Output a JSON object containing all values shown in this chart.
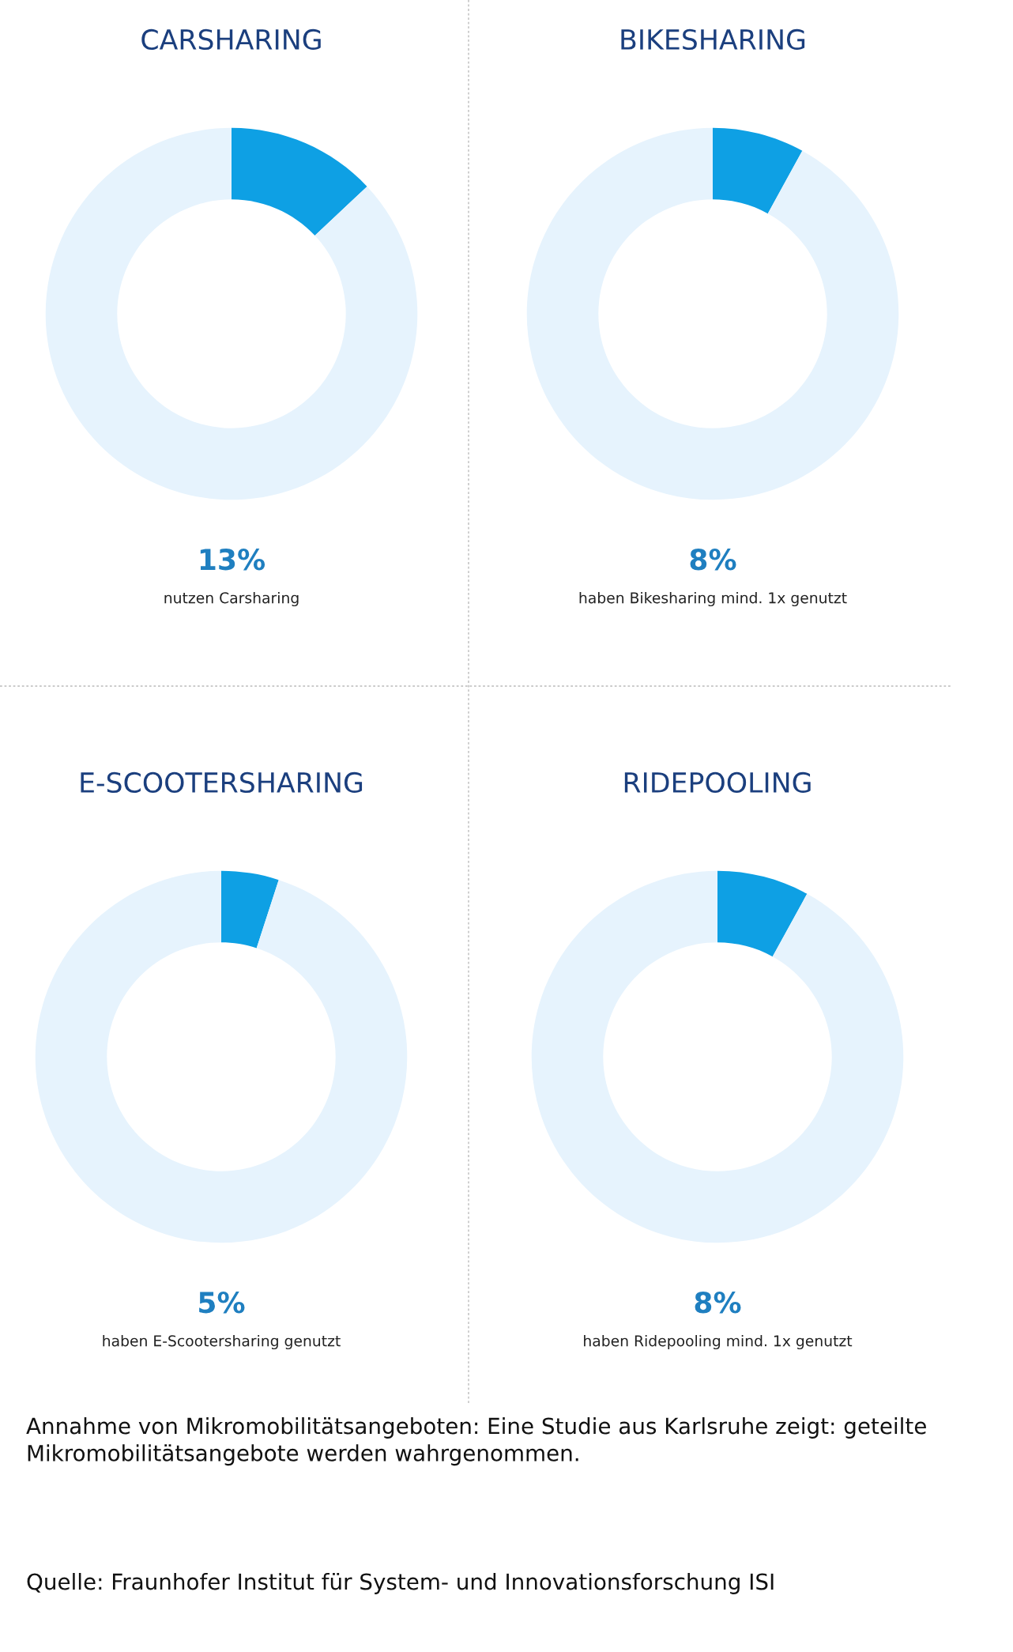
{
  "chart_data": [
    {
      "type": "donut",
      "title": "CARSHARING",
      "categories": [
        null,
        null
      ],
      "values": [
        13,
        87
      ],
      "colors": [
        "#0ea0e4",
        "#e6f3fd"
      ],
      "annotations": [
        "13%",
        "nutzen Carsharing"
      ]
    },
    {
      "type": "donut",
      "title": "BIKESHARING",
      "categories": [
        null,
        null
      ],
      "values": [
        8,
        92
      ],
      "colors": [
        "#0ea0e4",
        "#e6f3fd"
      ],
      "annotations": [
        "8%",
        "haben Bikesharing mind. 1x genutzt"
      ]
    },
    {
      "type": "donut",
      "title": "E-SCOOTERSHARING",
      "categories": [
        null,
        null
      ],
      "values": [
        5,
        95
      ],
      "colors": [
        "#0ea0e4",
        "#e6f3fd"
      ],
      "annotations": [
        "5%",
        "haben E-Scootersharing genutzt"
      ]
    },
    {
      "type": "donut",
      "title": "RIDEPOOLING",
      "categories": [
        null,
        null
      ],
      "values": [
        8,
        92
      ],
      "colors": [
        "#0ea0e4",
        "#e6f3fd"
      ],
      "annotations": [
        "8%",
        "haben Ridepooling mind. 1x genutzt"
      ]
    },
    {
      "type": "other",
      "annotations": [
        "Annahme von Mikromobilitätsangeboten: Eine Studie aus Karlsruhe zeigt: geteilte Mikromobilitätsangebote werden wahrgenommen.",
        "Quelle: Fraunhofer Institut für System- und Innovationsforschung ISI"
      ]
    }
  ]
}
